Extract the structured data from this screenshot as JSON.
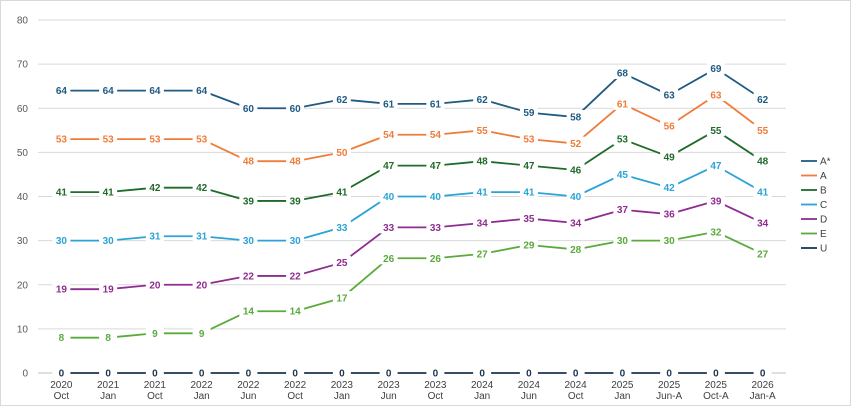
{
  "chart_data": {
    "type": "line",
    "title": "",
    "xlabel": "",
    "ylabel": "",
    "ylim": [
      0,
      80
    ],
    "yticks": [
      0,
      10,
      20,
      30,
      40,
      50,
      60,
      70,
      80
    ],
    "grid": true,
    "legend_position": "right",
    "categories": [
      [
        "2020",
        "Oct"
      ],
      [
        "2021",
        "Jan"
      ],
      [
        "2021",
        "Oct"
      ],
      [
        "2022",
        "Jan"
      ],
      [
        "2022",
        "Jun"
      ],
      [
        "2022",
        "Oct"
      ],
      [
        "2023",
        "Jan"
      ],
      [
        "2023",
        "Jun"
      ],
      [
        "2023",
        "Oct"
      ],
      [
        "2024",
        "Jan"
      ],
      [
        "2024",
        "Jun"
      ],
      [
        "2024",
        "Oct"
      ],
      [
        "2025",
        "Jan"
      ],
      [
        "2025",
        "Jun-A"
      ],
      [
        "2025",
        "Oct-A"
      ],
      [
        "2026",
        "Jan-A"
      ]
    ],
    "series": [
      {
        "name": "A*",
        "color": "#1f5b82",
        "values": [
          64,
          64,
          64,
          64,
          60,
          60,
          62,
          61,
          61,
          62,
          59,
          58,
          68,
          63,
          69,
          62
        ]
      },
      {
        "name": "A",
        "color": "#f07c3a",
        "values": [
          53,
          53,
          53,
          53,
          48,
          48,
          50,
          54,
          54,
          55,
          53,
          52,
          61,
          56,
          63,
          55
        ]
      },
      {
        "name": "B",
        "color": "#1e6b2a",
        "values": [
          41,
          41,
          42,
          42,
          39,
          39,
          41,
          47,
          47,
          48,
          47,
          46,
          53,
          49,
          55,
          48
        ]
      },
      {
        "name": "C",
        "color": "#2ba3d6",
        "values": [
          30,
          30,
          31,
          31,
          30,
          30,
          33,
          40,
          40,
          41,
          41,
          40,
          45,
          42,
          47,
          41
        ]
      },
      {
        "name": "D",
        "color": "#8f2c8f",
        "values": [
          19,
          19,
          20,
          20,
          22,
          22,
          25,
          33,
          33,
          34,
          35,
          34,
          37,
          36,
          39,
          34
        ]
      },
      {
        "name": "E",
        "color": "#5aaa3c",
        "values": [
          8,
          8,
          9,
          9,
          14,
          14,
          17,
          26,
          26,
          27,
          29,
          28,
          30,
          30,
          32,
          27
        ]
      },
      {
        "name": "U",
        "color": "#1a3550",
        "values": [
          0,
          0,
          0,
          0,
          0,
          0,
          0,
          0,
          0,
          0,
          0,
          0,
          0,
          0,
          0,
          0
        ]
      }
    ]
  }
}
